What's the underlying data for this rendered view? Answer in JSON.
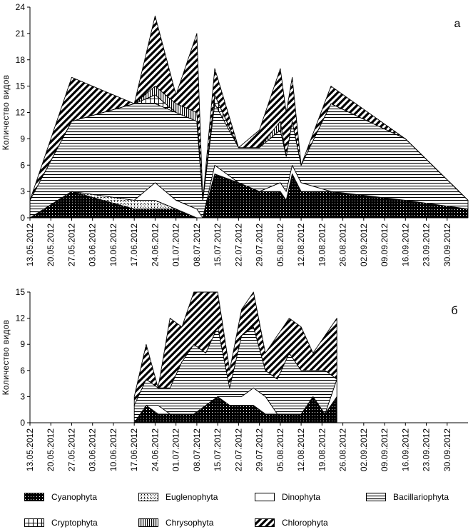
{
  "chart_data": [
    {
      "type": "area",
      "stacked": true,
      "panel_label": "а",
      "ylabel": "Количество  видов",
      "ylim": [
        0,
        24
      ],
      "yticks": [
        0,
        3,
        6,
        9,
        12,
        15,
        18,
        21,
        24
      ],
      "xtick_labels": [
        "13.05.2012",
        "20.05.2012",
        "27.05.2012",
        "03.06.2012",
        "10.06.2012",
        "17.06.2012",
        "24.06.2012",
        "01.07.2012",
        "08.07.2012",
        "15.07.2012",
        "22.07.2012",
        "29.07.2012",
        "05.08.2012",
        "12.08.2012",
        "19.08.2012",
        "26.08.2012",
        "02.09.2012",
        "09.09.2012",
        "16.09.2012",
        "23.09.2012",
        "30.09.2012"
      ],
      "x": [
        "13.05.2012",
        "27.05.2012",
        "17.06.2012",
        "24.06.2012",
        "01.07.2012",
        "08.07.2012",
        "10.07.2012",
        "14.07.2012",
        "22.07.2012",
        "29.07.2012",
        "05.08.2012",
        "07.08.2012",
        "09.08.2012",
        "12.08.2012",
        "22.08.2012",
        "16.09.2012",
        "07.10.2012"
      ],
      "series": [
        {
          "name": "Cyanophyta",
          "values": [
            0,
            3,
            1,
            1,
            1,
            0,
            0,
            5,
            4,
            3,
            3,
            2,
            5,
            3,
            3,
            2,
            1
          ]
        },
        {
          "name": "Euglenophyta",
          "values": [
            0,
            0,
            1,
            1,
            0,
            0,
            0,
            0,
            0,
            0,
            0,
            0,
            0,
            0,
            0,
            0,
            0
          ]
        },
        {
          "name": "Dinophyta",
          "values": [
            0,
            0,
            0,
            2,
            1,
            1,
            0,
            1,
            0,
            0,
            1,
            1,
            1,
            1,
            0,
            0,
            0
          ]
        },
        {
          "name": "Bacillariophyta",
          "values": [
            2,
            8,
            11,
            9,
            10,
            10,
            2,
            7,
            4,
            5,
            6,
            4,
            5,
            2,
            10,
            7,
            1
          ]
        },
        {
          "name": "Cryptophyta",
          "values": [
            0,
            0,
            0,
            1,
            0,
            0,
            0,
            1,
            0,
            0,
            0,
            0,
            0,
            0,
            0,
            0,
            0
          ]
        },
        {
          "name": "Chrysophyta",
          "values": [
            0,
            0,
            0,
            1,
            1,
            1,
            0,
            0,
            0,
            0,
            1,
            0,
            0,
            0,
            0,
            0,
            0
          ]
        },
        {
          "name": "Chlorophyta",
          "values": [
            0,
            5,
            0,
            8,
            1,
            9,
            0,
            3,
            0,
            2,
            6,
            5,
            5,
            0,
            2,
            0,
            0
          ]
        }
      ]
    },
    {
      "type": "area",
      "stacked": true,
      "panel_label": "б",
      "ylabel": "Количество  видов",
      "ylim": [
        0,
        15
      ],
      "yticks": [
        0,
        3,
        6,
        9,
        12,
        15
      ],
      "xtick_labels": [
        "13.05.2012",
        "20.05.2012",
        "27.05.2012",
        "03.06.2012",
        "10.06.2012",
        "17.06.2012",
        "24.06.2012",
        "01.07.2012",
        "08.07.2012",
        "15.07.2012",
        "22.07.2012",
        "29.07.2012",
        "05.08.2012",
        "12.08.2012",
        "19.08.2012",
        "26.08.2012",
        "02.09.2012",
        "09.09.2012",
        "16.09.2012",
        "23.09.2012",
        "30.09.2012"
      ],
      "x": [
        "17.06.2012",
        "21.06.2012",
        "25.06.2012",
        "29.06.2012",
        "03.07.2012",
        "07.07.2012",
        "11.07.2012",
        "15.07.2012",
        "19.07.2012",
        "23.07.2012",
        "27.07.2012",
        "31.07.2012",
        "04.08.2012",
        "08.08.2012",
        "12.08.2012",
        "16.08.2012",
        "20.08.2012",
        "24.08.2012"
      ],
      "series": [
        {
          "name": "Cyanophyta",
          "values": [
            0,
            2,
            1,
            1,
            1,
            1,
            2,
            3,
            2,
            2,
            2,
            1,
            1,
            1,
            1,
            3,
            1,
            3
          ]
        },
        {
          "name": "Euglenophyta",
          "values": [
            0,
            0,
            0,
            0,
            0,
            0,
            0,
            0,
            0,
            0,
            0,
            0,
            0,
            0,
            0,
            0,
            0,
            0
          ]
        },
        {
          "name": "Dinophyta",
          "values": [
            0,
            0,
            1,
            0,
            0,
            0,
            0,
            0,
            1,
            1,
            2,
            2,
            0,
            0,
            0,
            0,
            0,
            2
          ]
        },
        {
          "name": "Bacillariophyta",
          "values": [
            2,
            3,
            2,
            3,
            6,
            8,
            6,
            8,
            1,
            7,
            7,
            3,
            4,
            7,
            5,
            3,
            5,
            0
          ]
        },
        {
          "name": "Cryptophyta",
          "values": [
            0,
            0,
            0,
            0,
            0,
            0,
            0,
            0,
            0,
            0,
            0,
            0,
            0,
            0,
            0,
            0,
            0,
            0
          ]
        },
        {
          "name": "Chrysophyta",
          "values": [
            0,
            0,
            0,
            0,
            0,
            0,
            0,
            0,
            0,
            0,
            0,
            0,
            0,
            0,
            0,
            0,
            0,
            0
          ]
        },
        {
          "name": "Chlorophyta",
          "values": [
            1,
            4,
            0,
            8,
            4,
            6,
            7,
            4,
            2,
            3,
            4,
            2,
            5,
            4,
            5,
            2,
            4,
            7
          ]
        }
      ]
    }
  ],
  "legend": [
    {
      "name": "Cyanophyta",
      "pattern": "dots"
    },
    {
      "name": "Euglenophyta",
      "pattern": "dotted-grid"
    },
    {
      "name": "Dinophyta",
      "pattern": "blank"
    },
    {
      "name": "Bacillariophyta",
      "pattern": "horizontal"
    },
    {
      "name": "Cryptophyta",
      "pattern": "grid"
    },
    {
      "name": "Chrysophyta",
      "pattern": "vertical"
    },
    {
      "name": "Chlorophyta",
      "pattern": "diagonal"
    }
  ]
}
